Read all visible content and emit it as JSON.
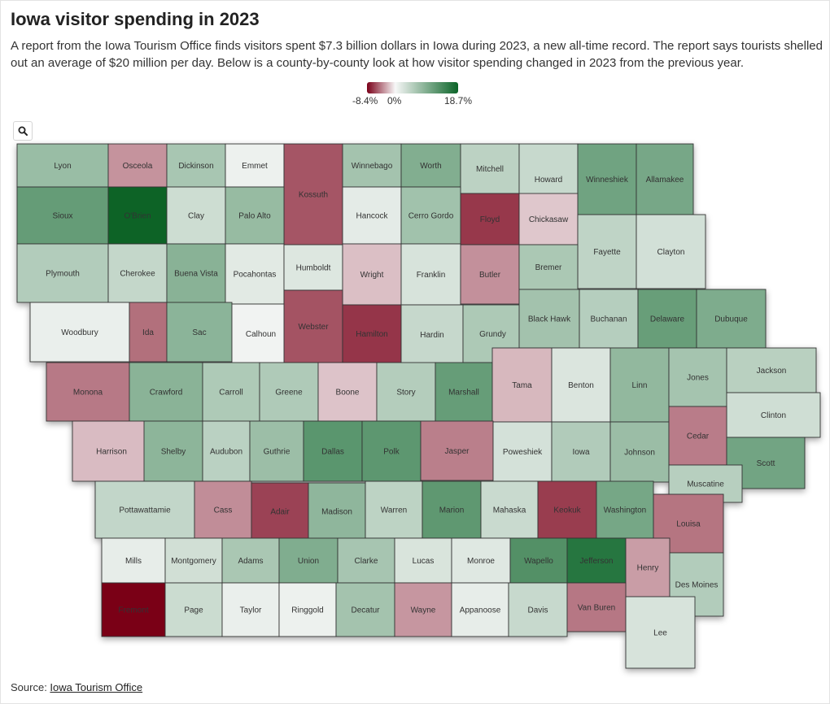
{
  "header": {
    "title": "Iowa visitor spending in 2023",
    "subtitle": "A report from the Iowa Tourism Office finds visitors spent $7.3 billion dollars in Iowa during 2023, a new all-time record. The report says tourists shelled out an average of $20 million per day. Below is a county-by-county look at how visitor spending changed in 2023 from the previous year."
  },
  "legend": {
    "min_label": "-8.4%",
    "mid_label": "0%",
    "max_label": "18.7%",
    "colors": {
      "negative": "#7a0019",
      "neutral": "#f7f7f7",
      "positive": "#0b6428"
    }
  },
  "map": {
    "zoom_icon": "search-icon",
    "counties": [
      {
        "name": "Lyon",
        "value": 5.0
      },
      {
        "name": "Osceola",
        "value": -2.3
      },
      {
        "name": "Dickinson",
        "value": 3.9
      },
      {
        "name": "Emmet",
        "value": 0.2
      },
      {
        "name": "Kossuth",
        "value": -4.6
      },
      {
        "name": "Winnebago",
        "value": 4.2
      },
      {
        "name": "Worth",
        "value": 6.9
      },
      {
        "name": "Mitchell",
        "value": 2.6
      },
      {
        "name": "Howard",
        "value": 1.9
      },
      {
        "name": "Winneshiek",
        "value": 8.4
      },
      {
        "name": "Allamakee",
        "value": 7.8
      },
      {
        "name": "Sioux",
        "value": 9.4
      },
      {
        "name": "O'Brien",
        "value": 18.7
      },
      {
        "name": "Clay",
        "value": 1.6
      },
      {
        "name": "Palo Alto",
        "value": 5.2
      },
      {
        "name": "Hancock",
        "value": 0.5
      },
      {
        "name": "Cerro Gordo",
        "value": 4.4
      },
      {
        "name": "Floyd",
        "value": -5.8
      },
      {
        "name": "Chickasaw",
        "value": -0.8
      },
      {
        "name": "Fayette",
        "value": 2.4
      },
      {
        "name": "Clayton",
        "value": 1.3
      },
      {
        "name": "Plymouth",
        "value": 3.2
      },
      {
        "name": "Cherokee",
        "value": 2.1
      },
      {
        "name": "Buena Vista",
        "value": 6.3
      },
      {
        "name": "Pocahontas",
        "value": 0.6
      },
      {
        "name": "Humboldt",
        "value": 0.8
      },
      {
        "name": "Wright",
        "value": -1.0
      },
      {
        "name": "Franklin",
        "value": 1.1
      },
      {
        "name": "Butler",
        "value": -2.4
      },
      {
        "name": "Bremer",
        "value": 3.7
      },
      {
        "name": "Woodbury",
        "value": 0.3
      },
      {
        "name": "Ida",
        "value": -3.6
      },
      {
        "name": "Sac",
        "value": 6.1
      },
      {
        "name": "Calhoun",
        "value": 0.1
      },
      {
        "name": "Webster",
        "value": -4.7
      },
      {
        "name": "Hamilton",
        "value": -5.9
      },
      {
        "name": "Hardin",
        "value": 2.0
      },
      {
        "name": "Grundy",
        "value": 3.6
      },
      {
        "name": "Black Hawk",
        "value": 4.3
      },
      {
        "name": "Buchanan",
        "value": 3.0
      },
      {
        "name": "Delaware",
        "value": 9.2
      },
      {
        "name": "Dubuque",
        "value": 7.2
      },
      {
        "name": "Monona",
        "value": -3.2
      },
      {
        "name": "Crawford",
        "value": 6.2
      },
      {
        "name": "Carroll",
        "value": 3.5
      },
      {
        "name": "Greene",
        "value": 3.4
      },
      {
        "name": "Boone",
        "value": -0.9
      },
      {
        "name": "Story",
        "value": 3.1
      },
      {
        "name": "Marshall",
        "value": 9.3
      },
      {
        "name": "Tama",
        "value": -1.2
      },
      {
        "name": "Benton",
        "value": 0.9
      },
      {
        "name": "Linn",
        "value": 5.6
      },
      {
        "name": "Jones",
        "value": 4.1
      },
      {
        "name": "Jackson",
        "value": 2.8
      },
      {
        "name": "Clinton",
        "value": 1.5
      },
      {
        "name": "Harrison",
        "value": -1.1
      },
      {
        "name": "Shelby",
        "value": 6.0
      },
      {
        "name": "Audubon",
        "value": 2.7
      },
      {
        "name": "Guthrie",
        "value": 4.8
      },
      {
        "name": "Dallas",
        "value": 10.4
      },
      {
        "name": "Polk",
        "value": 10.2
      },
      {
        "name": "Jasper",
        "value": -3.0
      },
      {
        "name": "Poweshiek",
        "value": 1.2
      },
      {
        "name": "Iowa",
        "value": 3.3
      },
      {
        "name": "Johnson",
        "value": 4.9
      },
      {
        "name": "Cedar",
        "value": -3.1
      },
      {
        "name": "Scott",
        "value": 8.2
      },
      {
        "name": "Muscatine",
        "value": 2.9
      },
      {
        "name": "Pottawattamie",
        "value": 2.2
      },
      {
        "name": "Cass",
        "value": -2.5
      },
      {
        "name": "Adair",
        "value": -5.4
      },
      {
        "name": "Madison",
        "value": 5.8
      },
      {
        "name": "Warren",
        "value": 2.5
      },
      {
        "name": "Marion",
        "value": 10.0
      },
      {
        "name": "Mahaska",
        "value": 1.8
      },
      {
        "name": "Keokuk",
        "value": -5.6
      },
      {
        "name": "Washington",
        "value": 7.9
      },
      {
        "name": "Louisa",
        "value": -3.4
      },
      {
        "name": "Mills",
        "value": 0.4
      },
      {
        "name": "Montgomery",
        "value": 1.4
      },
      {
        "name": "Adams",
        "value": 3.8
      },
      {
        "name": "Union",
        "value": 7.0
      },
      {
        "name": "Clarke",
        "value": 4.0
      },
      {
        "name": "Lucas",
        "value": 1.0
      },
      {
        "name": "Monroe",
        "value": 0.7
      },
      {
        "name": "Wapello",
        "value": 11.2
      },
      {
        "name": "Jefferson",
        "value": 15.6
      },
      {
        "name": "Henry",
        "value": -2.0
      },
      {
        "name": "Des Moines",
        "value": 3.2
      },
      {
        "name": "Fremont",
        "value": -8.4
      },
      {
        "name": "Page",
        "value": 1.7
      },
      {
        "name": "Taylor",
        "value": 0.3
      },
      {
        "name": "Ringgold",
        "value": 0.2
      },
      {
        "name": "Decatur",
        "value": 4.2
      },
      {
        "name": "Wayne",
        "value": -2.2
      },
      {
        "name": "Appanoose",
        "value": 0.4
      },
      {
        "name": "Davis",
        "value": 1.9
      },
      {
        "name": "Van Buren",
        "value": -3.3
      },
      {
        "name": "Lee",
        "value": 1.1
      }
    ]
  },
  "source": {
    "prefix": "Source: ",
    "link_text": "Iowa Tourism Office"
  }
}
